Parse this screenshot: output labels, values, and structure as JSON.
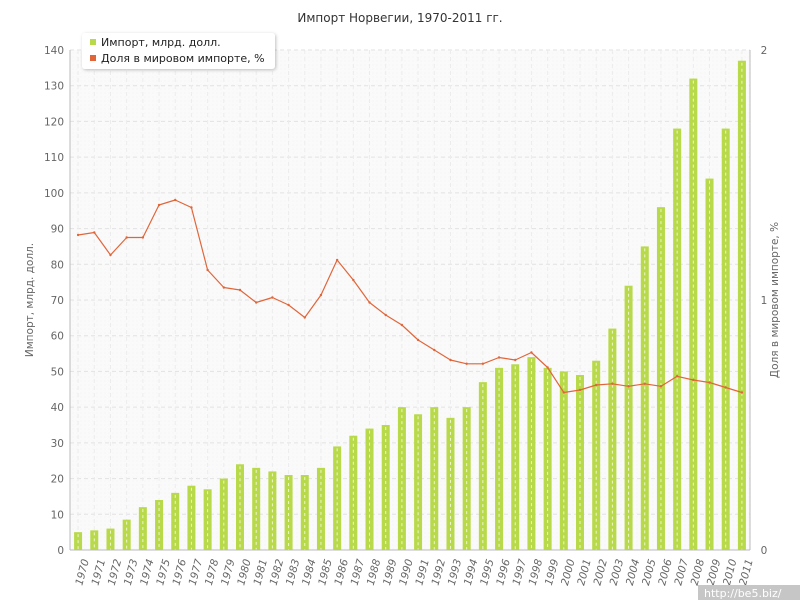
{
  "chart_data": {
    "type": "bar+line",
    "title": "Импорт Норвегии, 1970-2011 гг.",
    "ylabel_left": "Импорт, млрд. долл.",
    "ylabel_right": "Доля в мировом импорте, %",
    "ylim_left": [
      0,
      140
    ],
    "ylim_right": [
      0,
      2
    ],
    "yticks_left": [
      "0",
      "10",
      "20",
      "30",
      "40",
      "50",
      "60",
      "70",
      "80",
      "90",
      "100",
      "110",
      "120",
      "130",
      "140"
    ],
    "yticks_right": [
      "0",
      "1",
      "2"
    ],
    "grid": true,
    "legend_position": "top-left",
    "categories": [
      "1970",
      "1971",
      "1972",
      "1973",
      "1974",
      "1975",
      "1976",
      "1977",
      "1978",
      "1979",
      "1980",
      "1981",
      "1982",
      "1983",
      "1984",
      "1985",
      "1986",
      "1987",
      "1988",
      "1989",
      "1990",
      "1991",
      "1992",
      "1993",
      "1994",
      "1995",
      "1996",
      "1997",
      "1998",
      "1999",
      "2000",
      "2001",
      "2002",
      "2003",
      "2004",
      "2005",
      "2006",
      "2007",
      "2008",
      "2009",
      "2010",
      "2011"
    ],
    "series": [
      {
        "name": "Импорт, млрд. долл.",
        "kind": "bar",
        "axis": "left",
        "color": "#b8d94a",
        "values": [
          5,
          5.5,
          6,
          8.5,
          12,
          14,
          16,
          18,
          17,
          20,
          24,
          23,
          22,
          21,
          21,
          23,
          29,
          32,
          34,
          35,
          40,
          38,
          40,
          37,
          40,
          47,
          51,
          52,
          54,
          51,
          50,
          49,
          53,
          62,
          74,
          85,
          96,
          118,
          132,
          104,
          118,
          137
        ]
      },
      {
        "name": "Доля в мировом импорте, %",
        "kind": "line",
        "axis": "right",
        "color": "#e0663a",
        "values": [
          1.26,
          1.27,
          1.18,
          1.25,
          1.25,
          1.38,
          1.4,
          1.37,
          1.12,
          1.05,
          1.04,
          0.99,
          1.01,
          0.98,
          0.93,
          1.02,
          1.16,
          1.08,
          0.99,
          0.94,
          0.9,
          0.84,
          0.8,
          0.76,
          0.745,
          0.745,
          0.77,
          0.76,
          0.79,
          0.73,
          0.63,
          0.64,
          0.66,
          0.665,
          0.655,
          0.665,
          0.655,
          0.695,
          0.68,
          0.67,
          0.65,
          0.63
        ]
      }
    ]
  },
  "watermark": "http://be5.biz/"
}
